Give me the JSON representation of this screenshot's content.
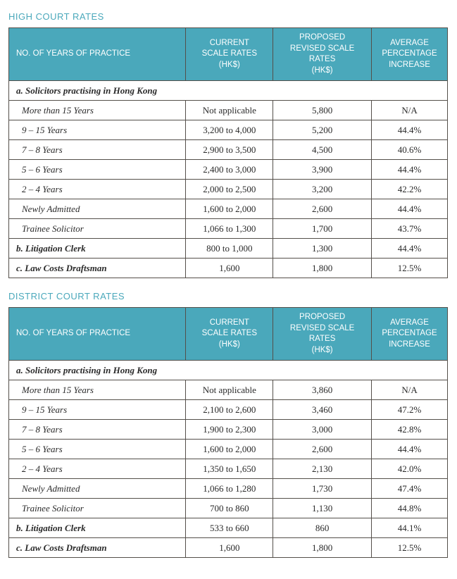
{
  "colors": {
    "accent": "#4aa8bb",
    "border": "#544f4a",
    "text": "#2a2a2a",
    "background": "#ffffff"
  },
  "typography": {
    "title_fontsize": 13,
    "header_fontsize": 11.5,
    "cell_fontsize": 13
  },
  "columns": {
    "c0": "NO. OF YEARS OF PRACTICE",
    "c1": "CURRENT\nSCALE RATES\n(HK$)",
    "c2": "PROPOSED\nREVISED SCALE RATES\n(HK$)",
    "c3": "AVERAGE\nPERCENTAGE\nINCREASE"
  },
  "tables": [
    {
      "title": "HIGH COURT RATES",
      "rows": [
        {
          "type": "section",
          "label": "a. Solicitors practising in Hong Kong"
        },
        {
          "type": "data",
          "label": "More than 15 Years",
          "current": "Not applicable",
          "proposed": "5,800",
          "pct": "N/A"
        },
        {
          "type": "data",
          "label": "9 – 15 Years",
          "current": "3,200 to 4,000",
          "proposed": "5,200",
          "pct": "44.4%"
        },
        {
          "type": "data",
          "label": "7 – 8 Years",
          "current": "2,900 to 3,500",
          "proposed": "4,500",
          "pct": "40.6%"
        },
        {
          "type": "data",
          "label": "5 – 6 Years",
          "current": "2,400 to 3,000",
          "proposed": "3,900",
          "pct": "44.4%"
        },
        {
          "type": "data",
          "label": "2 – 4 Years",
          "current": "2,000 to 2,500",
          "proposed": "3,200",
          "pct": "42.2%"
        },
        {
          "type": "data",
          "label": "Newly Admitted",
          "current": "1,600 to 2,000",
          "proposed": "2,600",
          "pct": "44.4%"
        },
        {
          "type": "data",
          "label": "Trainee Solicitor",
          "current": "1,066 to 1,300",
          "proposed": "1,700",
          "pct": "43.7%"
        },
        {
          "type": "section-data",
          "label": "b. Litigation Clerk",
          "current": "800 to 1,000",
          "proposed": "1,300",
          "pct": "44.4%"
        },
        {
          "type": "section-data",
          "label": "c. Law Costs Draftsman",
          "current": "1,600",
          "proposed": "1,800",
          "pct": "12.5%"
        }
      ]
    },
    {
      "title": "DISTRICT COURT RATES",
      "rows": [
        {
          "type": "section",
          "label": "a. Solicitors practising in Hong Kong"
        },
        {
          "type": "data",
          "label": "More than 15 Years",
          "current": "Not applicable",
          "proposed": "3,860",
          "pct": "N/A"
        },
        {
          "type": "data",
          "label": "9 – 15 Years",
          "current": "2,100 to 2,600",
          "proposed": "3,460",
          "pct": "47.2%"
        },
        {
          "type": "data",
          "label": "7 – 8 Years",
          "current": "1,900 to 2,300",
          "proposed": "3,000",
          "pct": "42.8%"
        },
        {
          "type": "data",
          "label": "5 – 6 Years",
          "current": "1,600 to 2,000",
          "proposed": "2,600",
          "pct": "44.4%"
        },
        {
          "type": "data",
          "label": "2 – 4 Years",
          "current": "1,350 to 1,650",
          "proposed": "2,130",
          "pct": "42.0%"
        },
        {
          "type": "data",
          "label": "Newly Admitted",
          "current": "1,066 to 1,280",
          "proposed": "1,730",
          "pct": "47.4%"
        },
        {
          "type": "data",
          "label": "Trainee Solicitor",
          "current": "700 to 860",
          "proposed": "1,130",
          "pct": "44.8%"
        },
        {
          "type": "section-data",
          "label": "b. Litigation Clerk",
          "current": "533 to 660",
          "proposed": "860",
          "pct": "44.1%"
        },
        {
          "type": "section-data",
          "label": "c. Law Costs Draftsman",
          "current": "1,600",
          "proposed": "1,800",
          "pct": "12.5%"
        }
      ]
    }
  ]
}
